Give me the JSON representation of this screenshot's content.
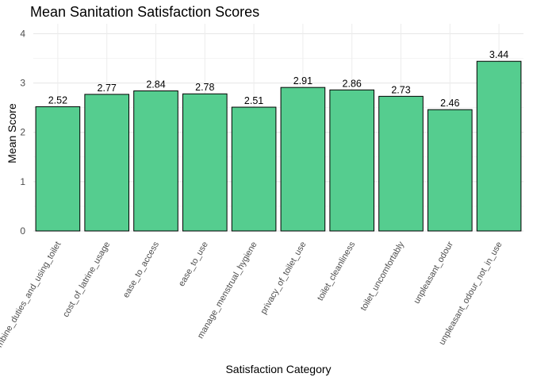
{
  "chart_data": {
    "type": "bar",
    "title": "Mean Sanitation Satisfaction Scores",
    "xlabel": "Satisfaction Category",
    "ylabel": "Mean Score",
    "ylim": [
      0,
      4.2
    ],
    "yticks": [
      0,
      1,
      2,
      3,
      4
    ],
    "grid": true,
    "bar_color": "#55CD8F",
    "bar_stroke": "#000000",
    "categories": [
      "combine_duties_and_using_toilet",
      "cost_of_latrine_usage",
      "ease_to_access",
      "ease_to_use",
      "manage_menstrual_hygiene",
      "privacy_of_toilet_use",
      "toilet_cleanliness",
      "toilet_uncomfortably",
      "unpleasant_odour",
      "unpleasant_odour_not_in_use"
    ],
    "values": [
      2.52,
      2.77,
      2.84,
      2.78,
      2.51,
      2.91,
      2.86,
      2.73,
      2.46,
      3.44
    ],
    "value_labels": [
      "2.52",
      "2.77",
      "2.84",
      "2.78",
      "2.51",
      "2.91",
      "2.86",
      "2.73",
      "2.46",
      "3.44"
    ]
  }
}
